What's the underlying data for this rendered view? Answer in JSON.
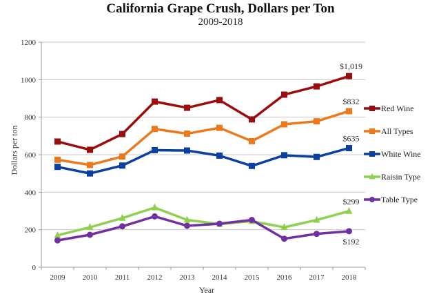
{
  "chart_data": {
    "type": "line",
    "title": "California Grape Crush, Dollars per Ton",
    "subtitle": "2009-2018",
    "xlabel": "Year",
    "ylabel": "Dollars per ton",
    "ylim": [
      0,
      1200
    ],
    "yticks": [
      0,
      200,
      400,
      600,
      800,
      1000,
      1200
    ],
    "grid": true,
    "legend_position": "right",
    "categories": [
      "2009",
      "2010",
      "2011",
      "2012",
      "2013",
      "2014",
      "2015",
      "2016",
      "2017",
      "2018"
    ],
    "series": [
      {
        "name": "Red Wine",
        "color": "#9b0d0d",
        "marker": "square",
        "values": [
          670,
          626,
          710,
          883,
          850,
          891,
          788,
          920,
          964,
          1019
        ]
      },
      {
        "name": "All Types",
        "color": "#ec7a1c",
        "marker": "square",
        "values": [
          573,
          545,
          590,
          737,
          712,
          743,
          672,
          762,
          778,
          832
        ]
      },
      {
        "name": "White Wine",
        "color": "#0b3fa0",
        "marker": "square",
        "values": [
          535,
          500,
          542,
          624,
          622,
          595,
          540,
          597,
          588,
          635
        ]
      },
      {
        "name": "Raisin Type",
        "color": "#8fd14f",
        "marker": "triangle",
        "values": [
          170,
          213,
          262,
          318,
          252,
          230,
          245,
          213,
          252,
          299
        ]
      },
      {
        "name": "Table Type",
        "color": "#7030a0",
        "marker": "circle",
        "values": [
          143,
          173,
          218,
          271,
          221,
          232,
          252,
          152,
          178,
          192
        ]
      }
    ],
    "annotations": [
      {
        "series": "Red Wine",
        "category": "2018",
        "text": "$1,019",
        "position": "above"
      },
      {
        "series": "All Types",
        "category": "2018",
        "text": "$832",
        "position": "above"
      },
      {
        "series": "White Wine",
        "category": "2018",
        "text": "$635",
        "position": "above"
      },
      {
        "series": "Raisin Type",
        "category": "2018",
        "text": "$299",
        "position": "above"
      },
      {
        "series": "Table Type",
        "category": "2018",
        "text": "$192",
        "position": "below"
      }
    ]
  }
}
